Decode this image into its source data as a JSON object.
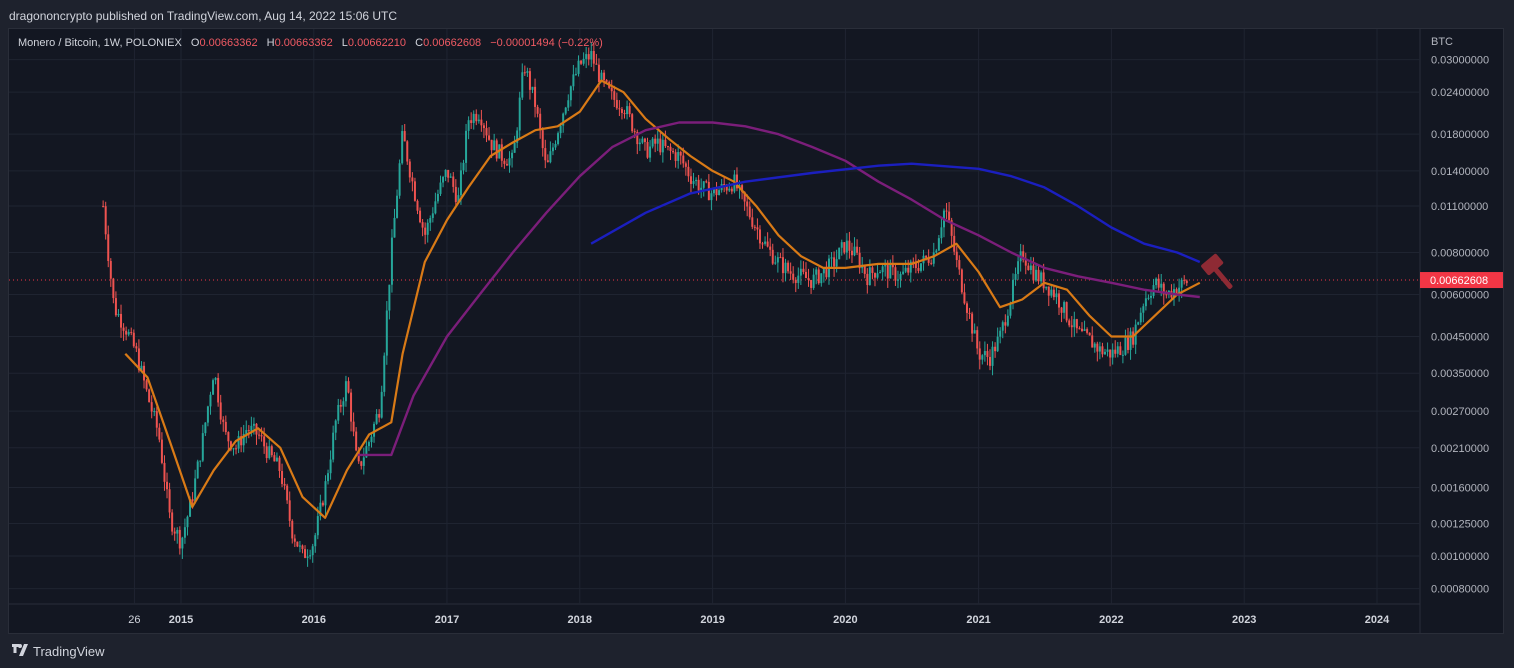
{
  "header": {
    "published": "dragononcrypto published on TradingView.com, Aug 14, 2022 15:06 UTC"
  },
  "legend": {
    "symbol": "Monero / Bitcoin, 1W, POLONIEX",
    "o_label": "O",
    "o_value": "0.00663362",
    "h_label": "H",
    "h_value": "0.00663362",
    "l_label": "L",
    "l_value": "0.00662210",
    "c_label": "C",
    "c_value": "0.00662608",
    "change": "−0.00001494 (−0.22%)"
  },
  "footer": {
    "brand": "TradingView"
  },
  "colors": {
    "background": "#131722",
    "up": "#26a69a",
    "down": "#ef5350",
    "orange_ma": "#d97a16",
    "purple_ma": "#7b1e7a",
    "blue_ma": "#1b1fbf",
    "last_price_tag": "#f23645"
  },
  "chart_data": {
    "type": "candlestick",
    "title": "Monero / Bitcoin, 1W, POLONIEX",
    "y_unit": "BTC",
    "y_scale": "log",
    "ylim": [
      0.00072,
      0.037
    ],
    "y_ticks": [
      "0.03000000",
      "0.02400000",
      "0.01800000",
      "0.01400000",
      "0.01100000",
      "0.00800000",
      "0.00600000",
      "0.00450000",
      "0.00350000",
      "0.00270000",
      "0.00210000",
      "0.00160000",
      "0.00125000",
      "0.00100000",
      "0.00080000"
    ],
    "x_ticks": [
      "26",
      "2015",
      "2016",
      "2017",
      "2018",
      "2019",
      "2020",
      "2021",
      "2022",
      "2023",
      "2024"
    ],
    "last_price": "0.00662608",
    "price_path": [
      [
        "2014-06",
        0.011
      ],
      [
        "2014-07",
        0.0055
      ],
      [
        "2014-08",
        0.0048
      ],
      [
        "2014-09",
        0.004
      ],
      [
        "2014-10",
        0.003
      ],
      [
        "2014-11",
        0.0023
      ],
      [
        "2014-12",
        0.0013
      ],
      [
        "2015-01",
        0.0011
      ],
      [
        "2015-02",
        0.0015
      ],
      [
        "2015-03",
        0.0022
      ],
      [
        "2015-04",
        0.0036
      ],
      [
        "2015-05",
        0.0023
      ],
      [
        "2015-06",
        0.0021
      ],
      [
        "2015-07",
        0.0024
      ],
      [
        "2015-08",
        0.0023
      ],
      [
        "2015-09",
        0.002
      ],
      [
        "2015-10",
        0.0018
      ],
      [
        "2015-11",
        0.0012
      ],
      [
        "2015-12",
        0.001
      ],
      [
        "2016-01",
        0.0011
      ],
      [
        "2016-02",
        0.0016
      ],
      [
        "2016-03",
        0.0025
      ],
      [
        "2016-04",
        0.0033
      ],
      [
        "2016-05",
        0.0018
      ],
      [
        "2016-06",
        0.0022
      ],
      [
        "2016-07",
        0.0028
      ],
      [
        "2016-08",
        0.008
      ],
      [
        "2016-09",
        0.018
      ],
      [
        "2016-10",
        0.0125
      ],
      [
        "2016-11",
        0.009
      ],
      [
        "2016-12",
        0.0115
      ],
      [
        "2017-01",
        0.014
      ],
      [
        "2017-02",
        0.0115
      ],
      [
        "2017-03",
        0.02
      ],
      [
        "2017-04",
        0.021
      ],
      [
        "2017-05",
        0.017
      ],
      [
        "2017-06",
        0.0155
      ],
      [
        "2017-07",
        0.015
      ],
      [
        "2017-08",
        0.029
      ],
      [
        "2017-09",
        0.022
      ],
      [
        "2017-10",
        0.014
      ],
      [
        "2017-11",
        0.0185
      ],
      [
        "2017-12",
        0.024
      ],
      [
        "2018-01",
        0.029
      ],
      [
        "2018-02",
        0.031
      ],
      [
        "2018-03",
        0.026
      ],
      [
        "2018-04",
        0.023
      ],
      [
        "2018-05",
        0.022
      ],
      [
        "2018-06",
        0.0185
      ],
      [
        "2018-07",
        0.016
      ],
      [
        "2018-08",
        0.017
      ],
      [
        "2018-09",
        0.016
      ],
      [
        "2018-10",
        0.0155
      ],
      [
        "2018-11",
        0.0135
      ],
      [
        "2018-12",
        0.0125
      ],
      [
        "2019-01",
        0.012
      ],
      [
        "2019-02",
        0.0125
      ],
      [
        "2019-03",
        0.013
      ],
      [
        "2019-04",
        0.011
      ],
      [
        "2019-05",
        0.0095
      ],
      [
        "2019-06",
        0.0082
      ],
      [
        "2019-07",
        0.0075
      ],
      [
        "2019-08",
        0.007
      ],
      [
        "2019-09",
        0.0068
      ],
      [
        "2019-10",
        0.0066
      ],
      [
        "2019-11",
        0.007
      ],
      [
        "2019-12",
        0.0075
      ],
      [
        "2020-01",
        0.0085
      ],
      [
        "2020-02",
        0.0078
      ],
      [
        "2020-03",
        0.0068
      ],
      [
        "2020-04",
        0.0072
      ],
      [
        "2020-05",
        0.007
      ],
      [
        "2020-06",
        0.0068
      ],
      [
        "2020-07",
        0.0072
      ],
      [
        "2020-08",
        0.0075
      ],
      [
        "2020-09",
        0.008
      ],
      [
        "2020-10",
        0.011
      ],
      [
        "2020-11",
        0.0075
      ],
      [
        "2020-12",
        0.0055
      ],
      [
        "2021-01",
        0.004
      ],
      [
        "2021-02",
        0.0039
      ],
      [
        "2021-03",
        0.0045
      ],
      [
        "2021-04",
        0.006
      ],
      [
        "2021-05",
        0.008
      ],
      [
        "2021-06",
        0.007
      ],
      [
        "2021-07",
        0.0065
      ],
      [
        "2021-08",
        0.006
      ],
      [
        "2021-09",
        0.0052
      ],
      [
        "2021-10",
        0.0046
      ],
      [
        "2021-11",
        0.0044
      ],
      [
        "2021-12",
        0.0041
      ],
      [
        "2022-01",
        0.004
      ],
      [
        "2022-02",
        0.0042
      ],
      [
        "2022-03",
        0.0045
      ],
      [
        "2022-04",
        0.0058
      ],
      [
        "2022-05",
        0.0065
      ],
      [
        "2022-06",
        0.006
      ],
      [
        "2022-07",
        0.0063
      ],
      [
        "2022-08",
        0.0066
      ]
    ],
    "series": [
      {
        "color": "#d97a16",
        "points": [
          [
            "2014-08",
            0.004
          ],
          [
            "2014-10",
            0.0034
          ],
          [
            "2014-12",
            0.0022
          ],
          [
            "2015-02",
            0.0014
          ],
          [
            "2015-04",
            0.0018
          ],
          [
            "2015-06",
            0.0022
          ],
          [
            "2015-08",
            0.0024
          ],
          [
            "2015-10",
            0.0021
          ],
          [
            "2015-12",
            0.0015
          ],
          [
            "2016-02",
            0.0013
          ],
          [
            "2016-04",
            0.0018
          ],
          [
            "2016-06",
            0.0023
          ],
          [
            "2016-08",
            0.0025
          ],
          [
            "2016-09",
            0.004
          ],
          [
            "2016-11",
            0.0075
          ],
          [
            "2017-01",
            0.01
          ],
          [
            "2017-03",
            0.0125
          ],
          [
            "2017-05",
            0.0155
          ],
          [
            "2017-07",
            0.017
          ],
          [
            "2017-09",
            0.0185
          ],
          [
            "2017-11",
            0.019
          ],
          [
            "2018-01",
            0.021
          ],
          [
            "2018-03",
            0.026
          ],
          [
            "2018-05",
            0.024
          ],
          [
            "2018-07",
            0.02
          ],
          [
            "2018-09",
            0.0175
          ],
          [
            "2018-11",
            0.0155
          ],
          [
            "2019-01",
            0.014
          ],
          [
            "2019-03",
            0.013
          ],
          [
            "2019-05",
            0.011
          ],
          [
            "2019-07",
            0.009
          ],
          [
            "2019-09",
            0.0078
          ],
          [
            "2019-11",
            0.0072
          ],
          [
            "2020-01",
            0.0072
          ],
          [
            "2020-04",
            0.0074
          ],
          [
            "2020-07",
            0.0074
          ],
          [
            "2020-09",
            0.0078
          ],
          [
            "2020-11",
            0.0085
          ],
          [
            "2021-01",
            0.007
          ],
          [
            "2021-03",
            0.0055
          ],
          [
            "2021-05",
            0.0058
          ],
          [
            "2021-07",
            0.0065
          ],
          [
            "2021-09",
            0.0062
          ],
          [
            "2021-11",
            0.0052
          ],
          [
            "2022-01",
            0.0045
          ],
          [
            "2022-03",
            0.0045
          ],
          [
            "2022-05",
            0.0052
          ],
          [
            "2022-07",
            0.006
          ],
          [
            "2022-09",
            0.0065
          ]
        ]
      },
      {
        "color": "#7b1e7a",
        "points": [
          [
            "2016-05",
            0.002
          ],
          [
            "2016-08",
            0.002
          ],
          [
            "2016-10",
            0.003
          ],
          [
            "2017-01",
            0.0045
          ],
          [
            "2017-04",
            0.006
          ],
          [
            "2017-07",
            0.008
          ],
          [
            "2017-10",
            0.0105
          ],
          [
            "2018-01",
            0.0135
          ],
          [
            "2018-04",
            0.0165
          ],
          [
            "2018-07",
            0.0185
          ],
          [
            "2018-10",
            0.0195
          ],
          [
            "2019-01",
            0.0195
          ],
          [
            "2019-04",
            0.019
          ],
          [
            "2019-07",
            0.018
          ],
          [
            "2019-10",
            0.0165
          ],
          [
            "2020-01",
            0.015
          ],
          [
            "2020-04",
            0.013
          ],
          [
            "2020-07",
            0.0115
          ],
          [
            "2020-10",
            0.01
          ],
          [
            "2021-01",
            0.009
          ],
          [
            "2021-04",
            0.008
          ],
          [
            "2021-07",
            0.0072
          ],
          [
            "2021-10",
            0.0068
          ],
          [
            "2022-01",
            0.0065
          ],
          [
            "2022-04",
            0.0062
          ],
          [
            "2022-07",
            0.006
          ],
          [
            "2022-09",
            0.0059
          ]
        ]
      },
      {
        "color": "#1b1fbf",
        "points": [
          [
            "2018-02",
            0.0085
          ],
          [
            "2018-07",
            0.0105
          ],
          [
            "2018-11",
            0.012
          ],
          [
            "2019-04",
            0.013
          ],
          [
            "2019-10",
            0.0138
          ],
          [
            "2020-04",
            0.0145
          ],
          [
            "2020-07",
            0.0147
          ],
          [
            "2021-01",
            0.0142
          ],
          [
            "2021-04",
            0.0135
          ],
          [
            "2021-07",
            0.0125
          ],
          [
            "2021-10",
            0.011
          ],
          [
            "2022-01",
            0.0095
          ],
          [
            "2022-04",
            0.0085
          ],
          [
            "2022-07",
            0.008
          ],
          [
            "2022-09",
            0.0075
          ]
        ]
      }
    ]
  }
}
